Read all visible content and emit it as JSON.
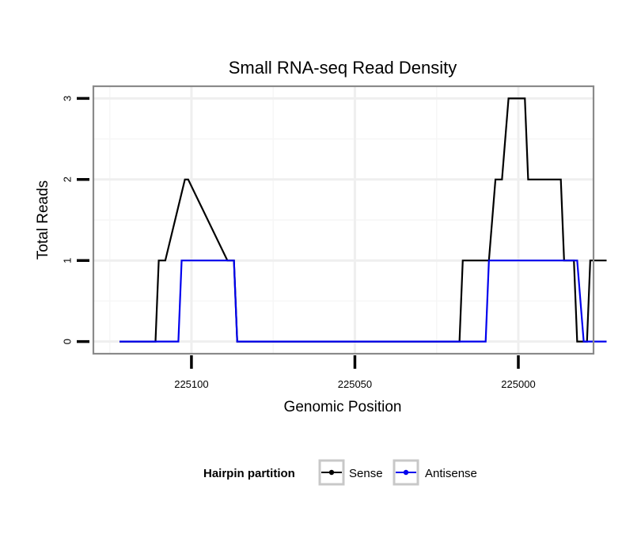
{
  "chart_data": {
    "type": "line",
    "title": "Small RNA-seq Read Density",
    "xlabel": "Genomic Position",
    "ylabel": "Total Reads",
    "xlim": [
      225130,
      224977
    ],
    "x_reversed": true,
    "ylim": [
      -0.15,
      3.15
    ],
    "x_ticks": [
      225100,
      225050,
      225000
    ],
    "x_tick_labels": [
      "225100",
      "225050",
      "225000"
    ],
    "y_ticks": [
      0,
      1,
      2,
      3
    ],
    "y_tick_labels": [
      "0",
      "1",
      "2",
      "3"
    ],
    "grid": true,
    "legend": {
      "title": "Hairpin partition",
      "position": "bottom",
      "entries": [
        {
          "label": "Sense",
          "color": "#000000"
        },
        {
          "label": "Antisense",
          "color": "#0000ee"
        }
      ]
    },
    "series": [
      {
        "name": "Sense",
        "color": "#000000",
        "x": [
          225122,
          225111,
          225110,
          225108,
          225102,
          225101,
          225089,
          225087,
          225086,
          225071,
          225070,
          225065,
          225062,
          225059,
          225057,
          225055,
          225053,
          225048,
          225047,
          225042,
          225041,
          225037,
          225034,
          225031,
          225030,
          225027,
          225026,
          225022,
          225021,
          225018,
          225017,
          225009,
          225007,
          225005,
          225003,
          224998,
          224997,
          224994,
          224993,
          224987,
          224986,
          224983,
          224982,
          224979,
          224978,
          224973
        ],
        "y": [
          0,
          0,
          1,
          1,
          2,
          2,
          1,
          1,
          0,
          0,
          0,
          0,
          0,
          0,
          0,
          0,
          0,
          0,
          0,
          0,
          0,
          0,
          0,
          0,
          0,
          0,
          0,
          0,
          0,
          0,
          1,
          1,
          2,
          2,
          3,
          3,
          2,
          2,
          2,
          2,
          1,
          1,
          0,
          0,
          1,
          1
        ]
      },
      {
        "name": "Antisense",
        "color": "#0000ee",
        "x": [
          225122,
          225116,
          225104,
          225103,
          225090,
          225088,
          225087,
          225086,
          225040,
          225037,
          225029,
          225010,
          225009,
          225007,
          225005,
          225004,
          225003,
          225000,
          224999,
          224998,
          224997,
          224996,
          224995,
          224992,
          224991,
          224990,
          224988,
          224987,
          224986,
          224985,
          224983,
          224982,
          224980,
          224979,
          224978,
          224976,
          224973
        ],
        "y": [
          0,
          0,
          0,
          1,
          1,
          1,
          1,
          0,
          0,
          0,
          0,
          0,
          1,
          1,
          1,
          1,
          1,
          1,
          1,
          1,
          1,
          1,
          1,
          1,
          1,
          1,
          1,
          1,
          1,
          1,
          1,
          1,
          0,
          0,
          0,
          0,
          0
        ]
      }
    ]
  }
}
